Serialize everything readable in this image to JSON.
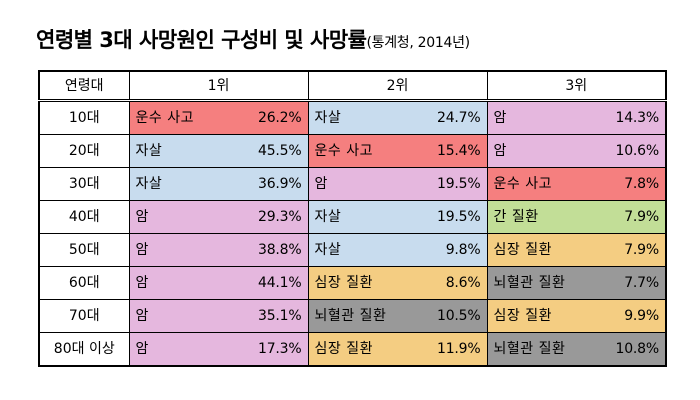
{
  "title": {
    "main": "연령별 3대 사망원인 구성비 및 사망률",
    "sub": "(통계청, 2014년)"
  },
  "colors": {
    "운수 사고": "#f57f7f",
    "자살": "#c8dcee",
    "암": "#e5b7de",
    "간 질환": "#c2de97",
    "심장 질환": "#f4cd82",
    "뇌혈관 질환": "#999999"
  },
  "chart_data": {
    "type": "table",
    "title": "연령별 3대 사망원인 구성비 및 사망률",
    "subtitle": "(통계청, 2014년)",
    "columns": [
      "연령대",
      "1위",
      "2위",
      "3위"
    ],
    "rows": [
      {
        "age": "10대",
        "ranks": [
          {
            "cause": "운수 사고",
            "value": "26.2%"
          },
          {
            "cause": "자살",
            "value": "24.7%"
          },
          {
            "cause": "암",
            "value": "14.3%"
          }
        ]
      },
      {
        "age": "20대",
        "ranks": [
          {
            "cause": "자살",
            "value": "45.5%"
          },
          {
            "cause": "운수 사고",
            "value": "15.4%"
          },
          {
            "cause": "암",
            "value": "10.6%"
          }
        ]
      },
      {
        "age": "30대",
        "ranks": [
          {
            "cause": "자살",
            "value": "36.9%"
          },
          {
            "cause": "암",
            "value": "19.5%"
          },
          {
            "cause": "운수 사고",
            "value": "7.8%"
          }
        ]
      },
      {
        "age": "40대",
        "ranks": [
          {
            "cause": "암",
            "value": "29.3%"
          },
          {
            "cause": "자살",
            "value": "19.5%"
          },
          {
            "cause": "간 질환",
            "value": "7.9%"
          }
        ]
      },
      {
        "age": "50대",
        "ranks": [
          {
            "cause": "암",
            "value": "38.8%"
          },
          {
            "cause": "자살",
            "value": "9.8%"
          },
          {
            "cause": "심장 질환",
            "value": "7.9%"
          }
        ]
      },
      {
        "age": "60대",
        "ranks": [
          {
            "cause": "암",
            "value": "44.1%"
          },
          {
            "cause": "심장 질환",
            "value": "8.6%"
          },
          {
            "cause": "뇌혈관 질환",
            "value": "7.7%"
          }
        ]
      },
      {
        "age": "70대",
        "ranks": [
          {
            "cause": "암",
            "value": "35.1%"
          },
          {
            "cause": "뇌혈관 질환",
            "value": "10.5%"
          },
          {
            "cause": "심장 질환",
            "value": "9.9%"
          }
        ]
      },
      {
        "age": "80대 이상",
        "ranks": [
          {
            "cause": "암",
            "value": "17.3%"
          },
          {
            "cause": "심장 질환",
            "value": "11.9%"
          },
          {
            "cause": "뇌혈관 질환",
            "value": "10.8%"
          }
        ]
      }
    ]
  }
}
